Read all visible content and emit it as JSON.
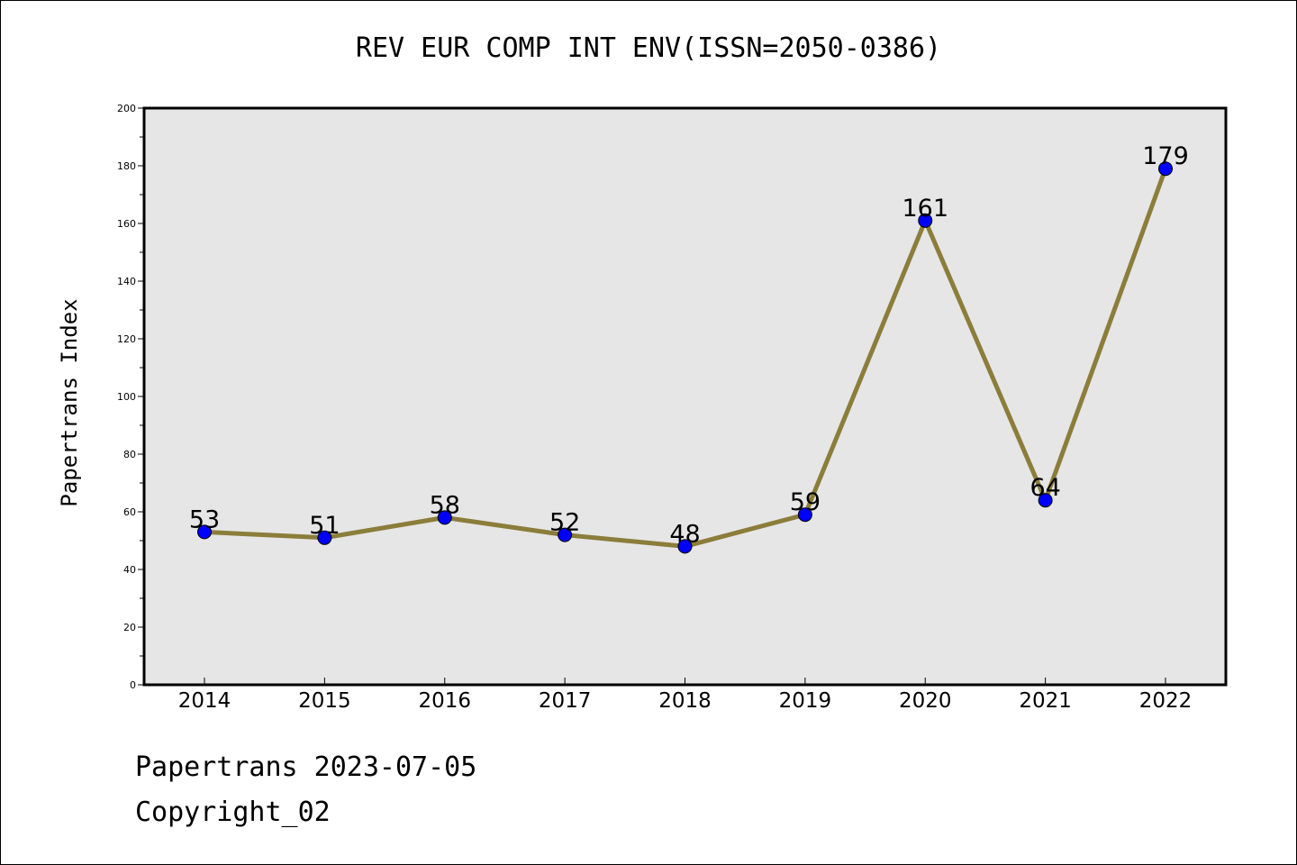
{
  "chart_data": {
    "type": "line",
    "title": "REV EUR COMP INT ENV(ISSN=2050-0386)",
    "ylabel": "Papertrans Index",
    "xlabel": "",
    "categories": [
      "2014",
      "2015",
      "2016",
      "2017",
      "2018",
      "2019",
      "2020",
      "2021",
      "2022"
    ],
    "series": [
      {
        "values": [
          53,
          51,
          58,
          52,
          48,
          59,
          161,
          64,
          179
        ]
      }
    ],
    "ylim": [
      0,
      200
    ],
    "yticks": [
      0,
      20,
      40,
      60,
      80,
      100,
      120,
      140,
      160,
      180,
      200
    ],
    "grid": false,
    "data_labels": true,
    "colors": {
      "line": "#8b7d3a",
      "marker": "#0000ff",
      "plot_background": "#e6e6e6"
    }
  },
  "footer": {
    "line1": "Papertrans 2023-07-05",
    "line2": "Copyright_02"
  }
}
